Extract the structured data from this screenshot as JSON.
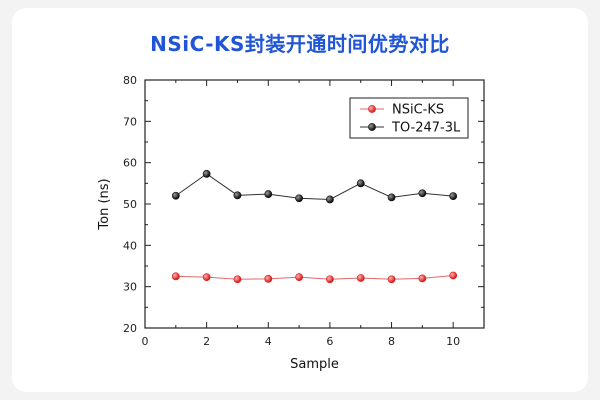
{
  "title": "NSiC-KS封装开通时间优势对比",
  "colors": {
    "title": "#1f55d6",
    "series_nsic": "#e02020",
    "series_to247": "#111111"
  },
  "chart_data": {
    "type": "line",
    "xlabel": "Sample",
    "ylabel": "Ton (ns)",
    "xlim": [
      0,
      11
    ],
    "ylim": [
      20,
      80
    ],
    "xticks": [
      0,
      2,
      4,
      6,
      8,
      10
    ],
    "yticks": [
      20,
      30,
      40,
      50,
      60,
      70,
      80
    ],
    "legend_position": "top-right",
    "x": [
      1,
      2,
      3,
      4,
      5,
      6,
      7,
      8,
      9,
      10
    ],
    "series": [
      {
        "name": "NSiC-KS",
        "color": "#e02020",
        "values": [
          32.5,
          32.3,
          31.8,
          31.9,
          32.3,
          31.8,
          32.1,
          31.8,
          32.0,
          32.7
        ]
      },
      {
        "name": "TO-247-3L",
        "color": "#111111",
        "values": [
          52.0,
          57.3,
          52.1,
          52.4,
          51.4,
          51.1,
          55.0,
          51.6,
          52.6,
          51.9
        ]
      }
    ]
  }
}
